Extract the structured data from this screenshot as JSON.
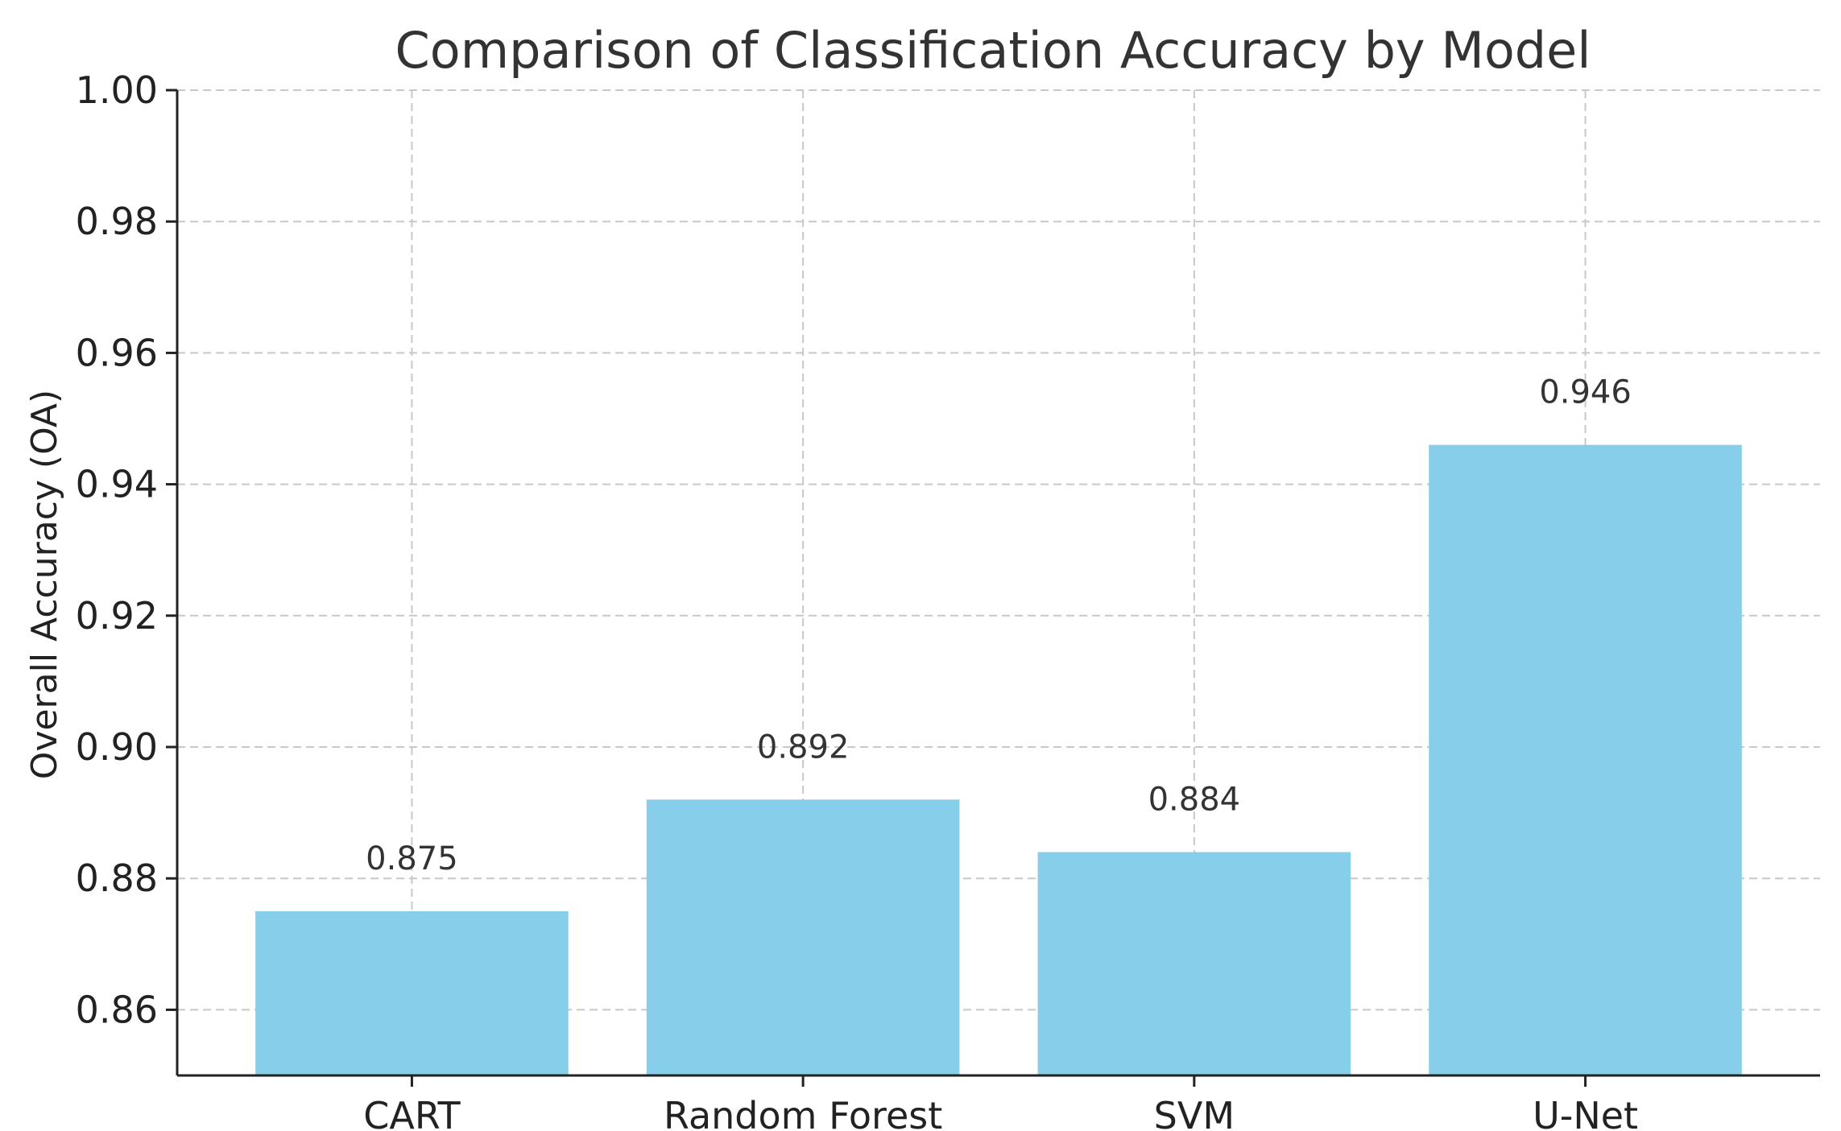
{
  "chart_data": {
    "type": "bar",
    "title": "Comparison of Classification Accuracy by Model",
    "xlabel": "",
    "ylabel": "Overall Accuracy (OA)",
    "categories": [
      "CART",
      "Random Forest",
      "SVM",
      "U-Net"
    ],
    "values": [
      0.875,
      0.892,
      0.884,
      0.946
    ],
    "data_labels": [
      "0.875",
      "0.892",
      "0.884",
      "0.946"
    ],
    "ylim": [
      0.85,
      1.0
    ],
    "yticks": [
      0.86,
      0.88,
      0.9,
      0.92,
      0.94,
      0.96,
      0.98,
      1.0
    ],
    "ytick_labels": [
      "0.86",
      "0.88",
      "0.90",
      "0.92",
      "0.94",
      "0.96",
      "0.98",
      "1.00"
    ],
    "grid": true,
    "bar_color": "#87CEEB"
  }
}
